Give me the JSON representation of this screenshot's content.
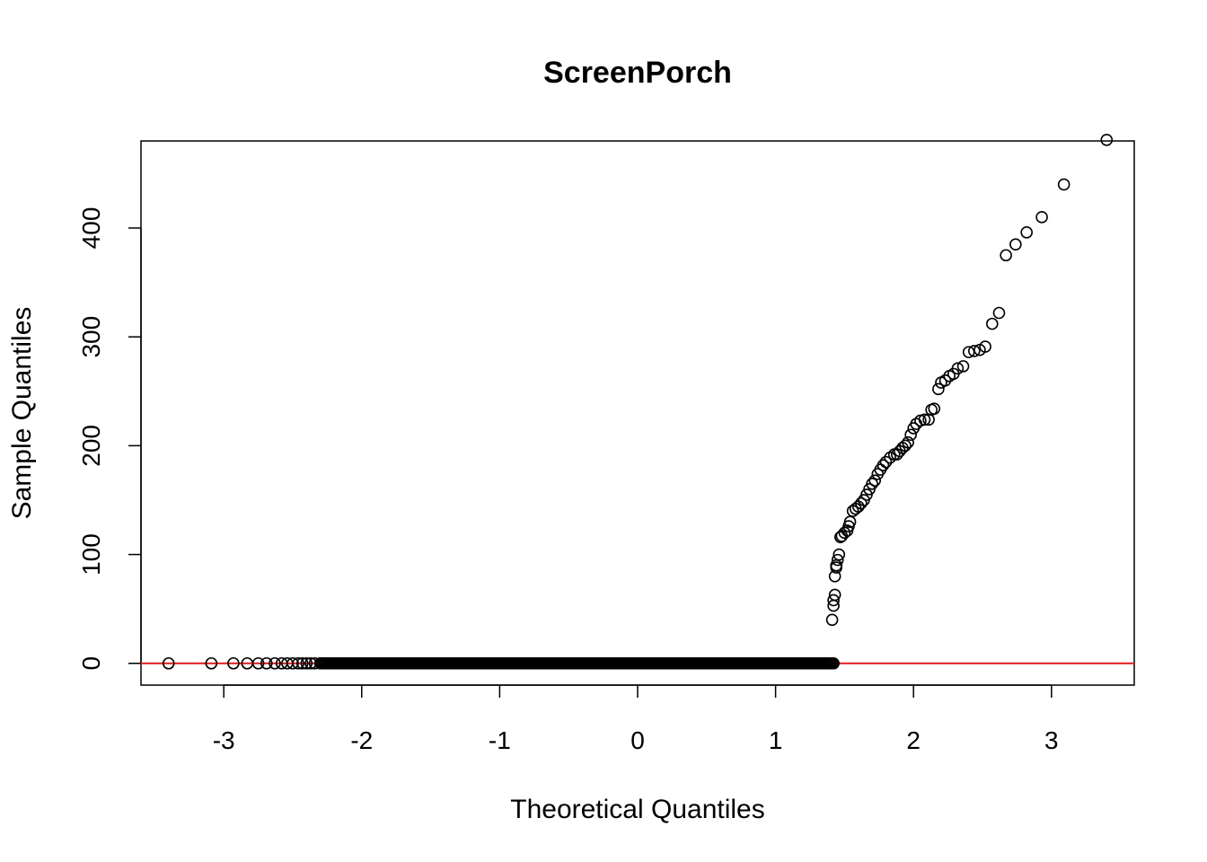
{
  "chart_data": {
    "type": "scatter",
    "title": "ScreenPorch",
    "xlabel": "Theoretical Quantiles",
    "ylabel": "Sample Quantiles",
    "xlim": [
      -3.6,
      3.6
    ],
    "ylim": [
      -20,
      480
    ],
    "x_ticks": [
      -3,
      -2,
      -1,
      0,
      1,
      2,
      3
    ],
    "y_ticks": [
      0,
      100,
      200,
      300,
      400
    ],
    "x_tick_labels": [
      "-3",
      "-2",
      "-1",
      "0",
      "1",
      "2",
      "3"
    ],
    "y_tick_labels": [
      "0",
      "100",
      "200",
      "300",
      "400"
    ],
    "reference_line": {
      "y": 0,
      "color": "#e41a1c"
    },
    "point_color": "#000000",
    "grid": false,
    "zero_run": {
      "from": -2.3,
      "to": 1.42,
      "step": 0.01,
      "y": 0
    },
    "points": [
      [
        -3.4,
        0
      ],
      [
        -3.09,
        0
      ],
      [
        -2.93,
        0
      ],
      [
        -2.83,
        0
      ],
      [
        -2.75,
        0
      ],
      [
        -2.69,
        0
      ],
      [
        -2.63,
        0
      ],
      [
        -2.58,
        0
      ],
      [
        -2.54,
        0
      ],
      [
        -2.5,
        0
      ],
      [
        -2.46,
        0
      ],
      [
        -2.43,
        0
      ],
      [
        -2.4,
        0
      ],
      [
        -2.37,
        0
      ],
      [
        -2.34,
        0
      ],
      [
        1.41,
        40
      ],
      [
        1.42,
        53
      ],
      [
        1.42,
        58
      ],
      [
        1.43,
        63
      ],
      [
        1.43,
        80
      ],
      [
        1.44,
        88
      ],
      [
        1.44,
        90
      ],
      [
        1.45,
        95
      ],
      [
        1.46,
        100
      ],
      [
        1.47,
        116
      ],
      [
        1.48,
        117
      ],
      [
        1.5,
        120
      ],
      [
        1.52,
        122
      ],
      [
        1.53,
        126
      ],
      [
        1.54,
        130
      ],
      [
        1.56,
        140
      ],
      [
        1.58,
        142
      ],
      [
        1.6,
        144
      ],
      [
        1.62,
        147
      ],
      [
        1.64,
        150
      ],
      [
        1.66,
        155
      ],
      [
        1.68,
        160
      ],
      [
        1.7,
        165
      ],
      [
        1.72,
        168
      ],
      [
        1.74,
        174
      ],
      [
        1.76,
        178
      ],
      [
        1.78,
        182
      ],
      [
        1.8,
        185
      ],
      [
        1.83,
        189
      ],
      [
        1.86,
        192
      ],
      [
        1.88,
        192
      ],
      [
        1.9,
        195
      ],
      [
        1.92,
        198
      ],
      [
        1.94,
        200
      ],
      [
        1.96,
        203
      ],
      [
        1.98,
        210
      ],
      [
        2.0,
        216
      ],
      [
        2.02,
        220
      ],
      [
        2.05,
        223
      ],
      [
        2.08,
        224
      ],
      [
        2.11,
        224
      ],
      [
        2.13,
        233
      ],
      [
        2.15,
        234
      ],
      [
        2.18,
        252
      ],
      [
        2.2,
        258
      ],
      [
        2.23,
        260
      ],
      [
        2.26,
        264
      ],
      [
        2.29,
        266
      ],
      [
        2.32,
        271
      ],
      [
        2.36,
        273
      ],
      [
        2.4,
        286
      ],
      [
        2.44,
        287
      ],
      [
        2.48,
        288
      ],
      [
        2.52,
        291
      ],
      [
        2.57,
        312
      ],
      [
        2.62,
        322
      ],
      [
        2.67,
        375
      ],
      [
        2.74,
        385
      ],
      [
        2.82,
        396
      ],
      [
        2.93,
        410
      ],
      [
        3.09,
        440
      ],
      [
        3.4,
        481
      ]
    ]
  }
}
